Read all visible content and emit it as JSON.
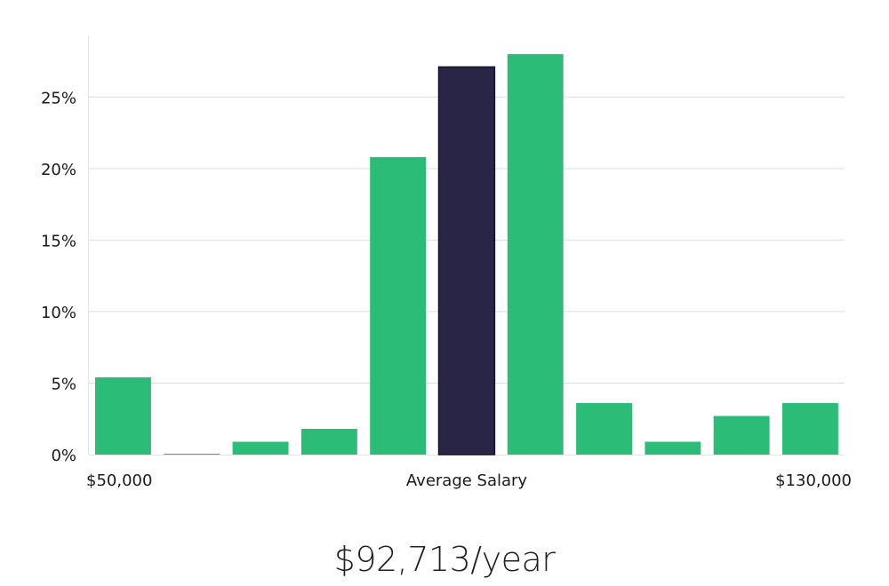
{
  "chart_data": {
    "type": "bar",
    "title": "",
    "xlabel": "Average Salary",
    "ylabel": "",
    "x_start_label": "$50,000",
    "x_end_label": "$130,000",
    "ylim": [
      0,
      29.3
    ],
    "yticks": [
      "0%",
      "5%",
      "10%",
      "15%",
      "20%",
      "25%"
    ],
    "ytick_values": [
      0,
      5,
      10,
      15,
      20,
      25
    ],
    "values": [
      5.4,
      0.05,
      0.9,
      1.8,
      20.8,
      27.1,
      28.0,
      3.6,
      0.9,
      2.7,
      3.6
    ],
    "highlight_index": 5,
    "colors": {
      "bar": "#2bbd77",
      "highlight": "#282546",
      "highlight_outline": "#15132a",
      "grid": "#dddddd",
      "axis": "#e5e5e5"
    },
    "grid": true
  },
  "salary": {
    "text": "$92,713/year"
  }
}
